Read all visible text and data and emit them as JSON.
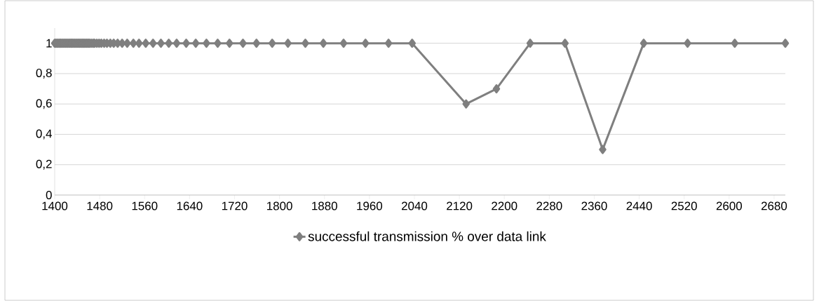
{
  "chart_data": {
    "type": "line",
    "xlim": [
      1400,
      2700
    ],
    "ylim": [
      0,
      1.1
    ],
    "xticks": [
      1400,
      1480,
      1560,
      1640,
      1720,
      1800,
      1880,
      1960,
      2040,
      2120,
      2200,
      2280,
      2360,
      2440,
      2520,
      2600,
      2680
    ],
    "yticks": [
      0,
      {
        "value": 0.2,
        "label": "0,2"
      },
      {
        "value": 0.4,
        "label": "0,4"
      },
      {
        "value": 0.6,
        "label": "0,6"
      },
      {
        "value": 0.8,
        "label": "0,8"
      },
      1
    ],
    "grid": "y",
    "legend": "bottom",
    "marker": "diamond",
    "line_style": "solid",
    "series": [
      {
        "name": "successful transmission % over data link",
        "color": "#7f7f7f",
        "x": [
          1400,
          1402,
          1404,
          1406,
          1408,
          1410,
          1411,
          1413,
          1415,
          1417,
          1419,
          1421,
          1423,
          1425,
          1427,
          1429,
          1430,
          1432,
          1434,
          1436,
          1438,
          1440,
          1442,
          1444,
          1446,
          1448,
          1450,
          1451,
          1453,
          1455,
          1457,
          1459,
          1461,
          1463,
          1466,
          1469,
          1471,
          1475,
          1479,
          1483,
          1488,
          1493,
          1499,
          1505,
          1512,
          1520,
          1529,
          1540,
          1550,
          1562,
          1575,
          1589,
          1603,
          1617,
          1634,
          1651,
          1670,
          1690,
          1711,
          1735,
          1759,
          1787,
          1815,
          1846,
          1878,
          1914,
          1953,
          1994,
          2036,
          2132,
          2186,
          2246,
          2308,
          2375,
          2448,
          2526,
          2610,
          2700
        ],
        "values": [
          1,
          1,
          1,
          1,
          1,
          1,
          1,
          1,
          1,
          1,
          1,
          1,
          1,
          1,
          1,
          1,
          1,
          1,
          1,
          1,
          1,
          1,
          1,
          1,
          1,
          1,
          1,
          1,
          1,
          1,
          1,
          1,
          1,
          1,
          1,
          1,
          1,
          1,
          1,
          1,
          1,
          1,
          1,
          1,
          1,
          1,
          1,
          1,
          1,
          1,
          1,
          1,
          1,
          1,
          1,
          1,
          1,
          1,
          1,
          1,
          1,
          1,
          1,
          1,
          1,
          1,
          1,
          1,
          1,
          0.6,
          0.7,
          1,
          1,
          0.3,
          1,
          1,
          1,
          1
        ]
      }
    ]
  }
}
